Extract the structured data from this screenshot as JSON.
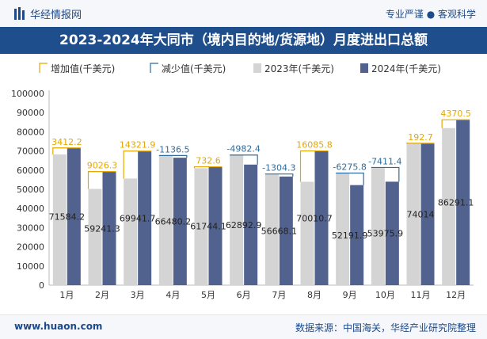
{
  "header": {
    "brand": "华经情报网",
    "tagline": "专业严谨 ● 客观科学"
  },
  "footer": {
    "website": "www.huaon.com",
    "source": "数据来源：中国海关，华经产业研究院整理"
  },
  "colors": {
    "bar2023": "#d4d4d4",
    "bar2024": "#52628f",
    "increase": "#e6a700",
    "decrease": "#2f6b9a",
    "title_bg": "#1f4e8c"
  },
  "chart_data": {
    "type": "bar",
    "title": "2023-2024年大同市（境内目的地/货源地）月度进出口总额",
    "categories": [
      "1月",
      "2月",
      "3月",
      "4月",
      "5月",
      "6月",
      "7月",
      "8月",
      "9月",
      "10月",
      "11月",
      "12月"
    ],
    "series": [
      {
        "name": "2023年(千美元)",
        "values": [
          68172.0,
          50215.0,
          55619.8,
          67616.7,
          61011.5,
          67875.3,
          57972.4,
          53924.9,
          58467.7,
          61387.3,
          73821.3,
          81920.6
        ]
      },
      {
        "name": "2024年(千美元)",
        "values": [
          71584.2,
          59241.3,
          69941.7,
          66480.2,
          61744.1,
          62892.9,
          56668.1,
          70010.7,
          52191.9,
          53975.9,
          74014,
          86291.1
        ]
      }
    ],
    "change": {
      "values": [
        3412.2,
        9026.3,
        14321.9,
        -1136.5,
        732.6,
        -4982.4,
        -1304.3,
        16085.8,
        -6275.8,
        -7411.4,
        192.7,
        4370.5
      ],
      "labels": [
        "3412.2",
        "9026.3",
        "14321.9",
        "-1136.5",
        "732.6",
        "-4982.4",
        "-1304.3",
        "16085.8",
        "-6275.8",
        "-7411.4",
        "192.7",
        "4370.5"
      ]
    },
    "value_labels": [
      "71584.2",
      "59241.3",
      "69941.7",
      "66480.2",
      "61744.1",
      "62892.9",
      "56668.1",
      "70010.7",
      "52191.9",
      "53975.9",
      "74014",
      "86291.1"
    ],
    "legend": [
      "增加值(千美元)",
      "减少值(千美元)",
      "2023年(千美元)",
      "2024年(千美元)"
    ],
    "legend_position": "top",
    "ylim": [
      0,
      100000
    ],
    "yticks": [
      0,
      10000,
      20000,
      30000,
      40000,
      50000,
      60000,
      70000,
      80000,
      90000,
      100000
    ],
    "ytick_labels": [
      "0",
      "10000",
      "20000",
      "30000",
      "40000",
      "50000",
      "60000",
      "70000",
      "80000",
      "90000",
      "100000"
    ],
    "grid": false
  }
}
